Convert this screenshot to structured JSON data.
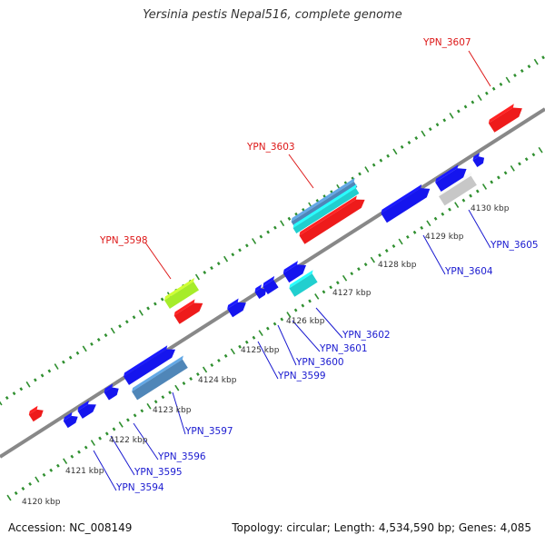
{
  "title": "Yersinia pestis Nepal516, complete genome",
  "footer": {
    "accession": "Accession: NC_008149",
    "summary": "Topology: circular; Length: 4,534,590 bp; Genes: 4,085"
  },
  "colors": {
    "backbone": "#888888",
    "ruler": "#2f8f2f",
    "blue": "#1515ee",
    "steel": "#4f86b8",
    "cyan": "#21cfcf",
    "red": "#ee1b1b",
    "lime": "#a6ec2a",
    "grey": "#c7c7c7",
    "label_blue": "#1a1ad0",
    "label_red": "#dd1818"
  },
  "kbp_labels": [
    {
      "text": "4120 kbp",
      "kbp": 4120
    },
    {
      "text": "4121 kbp",
      "kbp": 4121
    },
    {
      "text": "4122 kbp",
      "kbp": 4122
    },
    {
      "text": "4123 kbp",
      "kbp": 4123
    },
    {
      "text": "4124 kbp",
      "kbp": 4124
    },
    {
      "text": "4125 kbp",
      "kbp": 4125
    },
    {
      "text": "4126 kbp",
      "kbp": 4126
    },
    {
      "text": "4127 kbp",
      "kbp": 4127
    },
    {
      "text": "4128 kbp",
      "kbp": 4128
    },
    {
      "text": "4129 kbp",
      "kbp": 4129
    },
    {
      "text": "4130 kbp",
      "kbp": 4130
    }
  ],
  "gene_labels": [
    {
      "text": "YPN_3594",
      "color": "label_blue",
      "side": "below"
    },
    {
      "text": "YPN_3595",
      "color": "label_blue",
      "side": "below"
    },
    {
      "text": "YPN_3596",
      "color": "label_blue",
      "side": "below"
    },
    {
      "text": "YPN_3597",
      "color": "label_blue",
      "side": "below"
    },
    {
      "text": "YPN_3598",
      "color": "label_red",
      "side": "above"
    },
    {
      "text": "YPN_3599",
      "color": "label_blue",
      "side": "below"
    },
    {
      "text": "YPN_3600",
      "color": "label_blue",
      "side": "below"
    },
    {
      "text": "YPN_3601",
      "color": "label_blue",
      "side": "below"
    },
    {
      "text": "YPN_3602",
      "color": "label_blue",
      "side": "below"
    },
    {
      "text": "YPN_3603",
      "color": "label_red",
      "side": "above"
    },
    {
      "text": "YPN_3604",
      "color": "label_blue",
      "side": "below"
    },
    {
      "text": "YPN_3605",
      "color": "label_blue",
      "side": "below"
    },
    {
      "text": "YPN_3607",
      "color": "label_red",
      "side": "above"
    }
  ]
}
